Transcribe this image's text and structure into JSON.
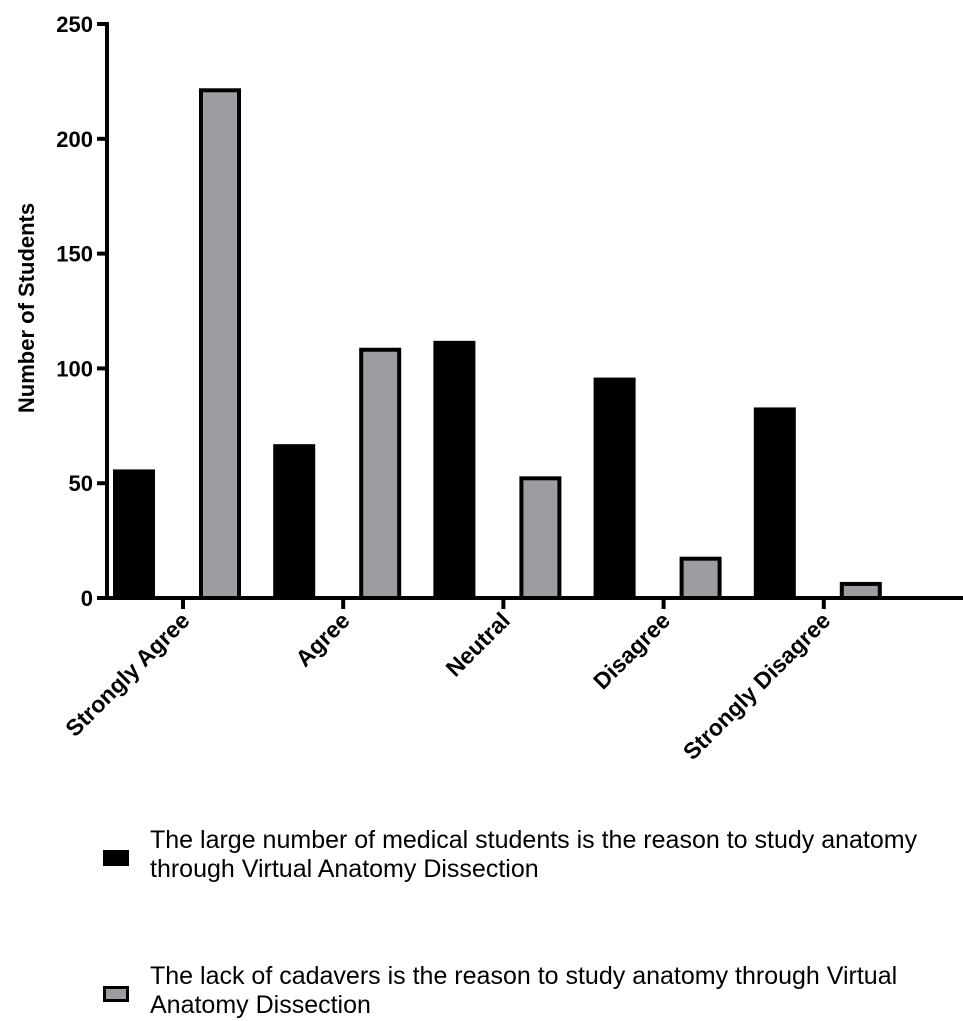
{
  "chart_data": {
    "type": "bar",
    "categories": [
      "Strongly Agree",
      "Agree",
      "Neutral",
      "Disagree",
      "Strongly Disagree"
    ],
    "series": [
      {
        "name": "The large number of medical students is the reason to study anatomy through Virtual Anatomy Dissection",
        "values": [
          56,
          67,
          112,
          96,
          83
        ],
        "color": "#000000"
      },
      {
        "name": "The lack of cadavers is the reason to study anatomy through Virtual Anatomy Dissection",
        "values": [
          222,
          109,
          53,
          18,
          7
        ],
        "color": "#9d9ca1"
      }
    ],
    "ylabel": "Number of Students",
    "xlabel": "",
    "ylim": [
      0,
      250
    ],
    "yticks": [
      "0",
      "50",
      "100",
      "150",
      "200",
      "250"
    ],
    "grid": false,
    "legend_position": "bottom"
  }
}
